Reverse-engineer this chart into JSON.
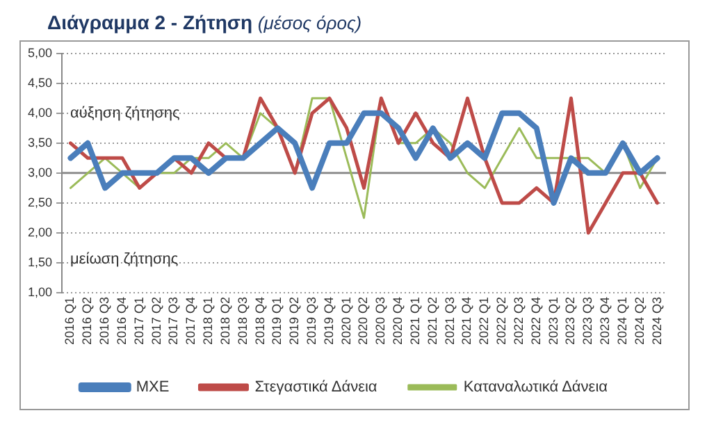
{
  "chart_data": {
    "type": "line",
    "title": "Διάγραμμα 2 - Ζήτηση",
    "subtitle": "(μέσος όρος)",
    "categories": [
      "2016 Q1",
      "2016 Q2",
      "2016 Q3",
      "2016 Q4",
      "2017 Q1",
      "2017 Q2",
      "2017 Q3",
      "2017 Q4",
      "2018 Q1",
      "2018 Q2",
      "2018 Q3",
      "2018 Q4",
      "2019 Q1",
      "2019 Q2",
      "2019 Q3",
      "2019 Q4",
      "2020 Q1",
      "2020 Q2",
      "2020 Q3",
      "2020 Q4",
      "2021 Q1",
      "2021 Q2",
      "2021 Q3",
      "2021 Q4",
      "2022 Q1",
      "2022 Q2",
      "2022 Q3",
      "2022 Q4",
      "2023 Q1",
      "2023 Q2",
      "2023 Q3",
      "2023 Q4",
      "2024 Q1",
      "2024 Q2",
      "2024 Q3"
    ],
    "series": [
      {
        "name": "ΜΧΕ",
        "color": "#4a7ebb",
        "values": [
          3.25,
          3.5,
          2.75,
          3.0,
          3.0,
          3.0,
          3.25,
          3.25,
          3.0,
          3.25,
          3.25,
          3.5,
          3.75,
          3.5,
          2.75,
          3.5,
          3.5,
          4.0,
          4.0,
          3.75,
          3.25,
          3.75,
          3.25,
          3.5,
          3.25,
          4.0,
          4.0,
          3.75,
          2.5,
          3.25,
          3.0,
          3.0,
          3.5,
          3.0,
          3.25
        ]
      },
      {
        "name": "Στεγαστικά Δάνεια",
        "color": "#be4b48",
        "values": [
          3.5,
          3.25,
          3.25,
          3.25,
          2.75,
          3.0,
          3.25,
          3.0,
          3.5,
          3.25,
          3.25,
          4.25,
          3.75,
          3.0,
          4.0,
          4.25,
          3.75,
          2.75,
          4.25,
          3.5,
          4.0,
          3.5,
          3.25,
          4.25,
          3.25,
          2.5,
          2.5,
          2.75,
          2.5,
          4.25,
          2.0,
          2.5,
          3.0,
          3.0,
          2.5
        ]
      },
      {
        "name": "Καταναλωτικά Δάνεια",
        "color": "#9bbb59",
        "values": [
          2.75,
          3.0,
          3.25,
          3.0,
          2.75,
          3.0,
          3.0,
          3.25,
          3.25,
          3.5,
          3.25,
          4.0,
          3.75,
          3.0,
          4.25,
          4.25,
          3.25,
          2.25,
          4.25,
          3.5,
          3.5,
          3.75,
          3.5,
          3.0,
          2.75,
          3.25,
          3.75,
          3.25,
          3.25,
          3.25,
          3.25,
          3.0,
          3.5,
          2.75,
          3.25
        ]
      }
    ],
    "ylim": [
      1,
      5
    ],
    "yticks": [
      {
        "value": 1,
        "label": "1,00"
      },
      {
        "value": 1.5,
        "label": "1,50"
      },
      {
        "value": 2,
        "label": "2,00"
      },
      {
        "value": 2.5,
        "label": "2,50"
      },
      {
        "value": 3,
        "label": "3,00"
      },
      {
        "value": 3.5,
        "label": "3,50"
      },
      {
        "value": 4,
        "label": "4,00"
      },
      {
        "value": 4.5,
        "label": "4,50"
      },
      {
        "value": 5,
        "label": "5,00"
      }
    ],
    "ref_lines": [
      {
        "axis": "y",
        "value": 3,
        "color": "#8c8c8c"
      }
    ],
    "annotations": [
      "αύξηση ζήτησης",
      "μείωση ζήτησης"
    ],
    "grid": "y",
    "legend": "bottom",
    "marker": "none",
    "line_style": "solid"
  }
}
